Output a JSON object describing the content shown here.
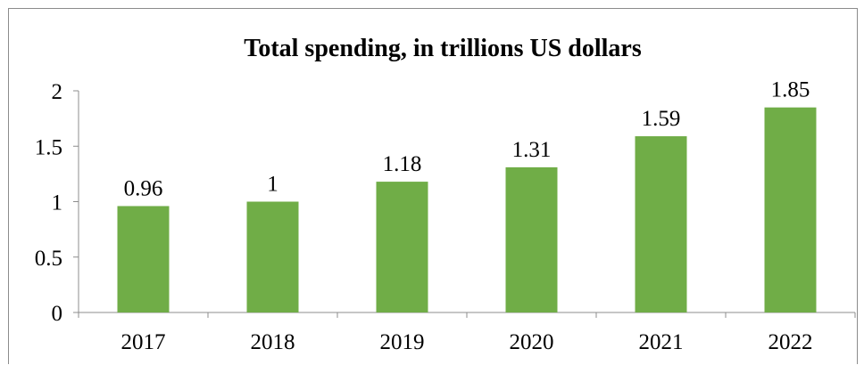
{
  "chart_data": {
    "type": "bar",
    "title": "Total spending, in trillions US dollars",
    "xlabel": "",
    "ylabel": "",
    "categories": [
      "2017",
      "2018",
      "2019",
      "2020",
      "2021",
      "2022"
    ],
    "values": [
      0.96,
      1,
      1.18,
      1.31,
      1.59,
      1.85
    ],
    "value_labels": [
      "0.96",
      "1",
      "1.18",
      "1.31",
      "1.59",
      "1.85"
    ],
    "ylim": [
      0,
      2
    ],
    "yticks": [
      0,
      0.5,
      1,
      1.5,
      2
    ],
    "ytick_labels": [
      "0",
      "0.5",
      "1",
      "1.5",
      "2"
    ],
    "grid": false,
    "legend": "none",
    "colors": {
      "bar": "#70ad47",
      "axis": "#8c8c8c",
      "text": "#000000"
    }
  }
}
